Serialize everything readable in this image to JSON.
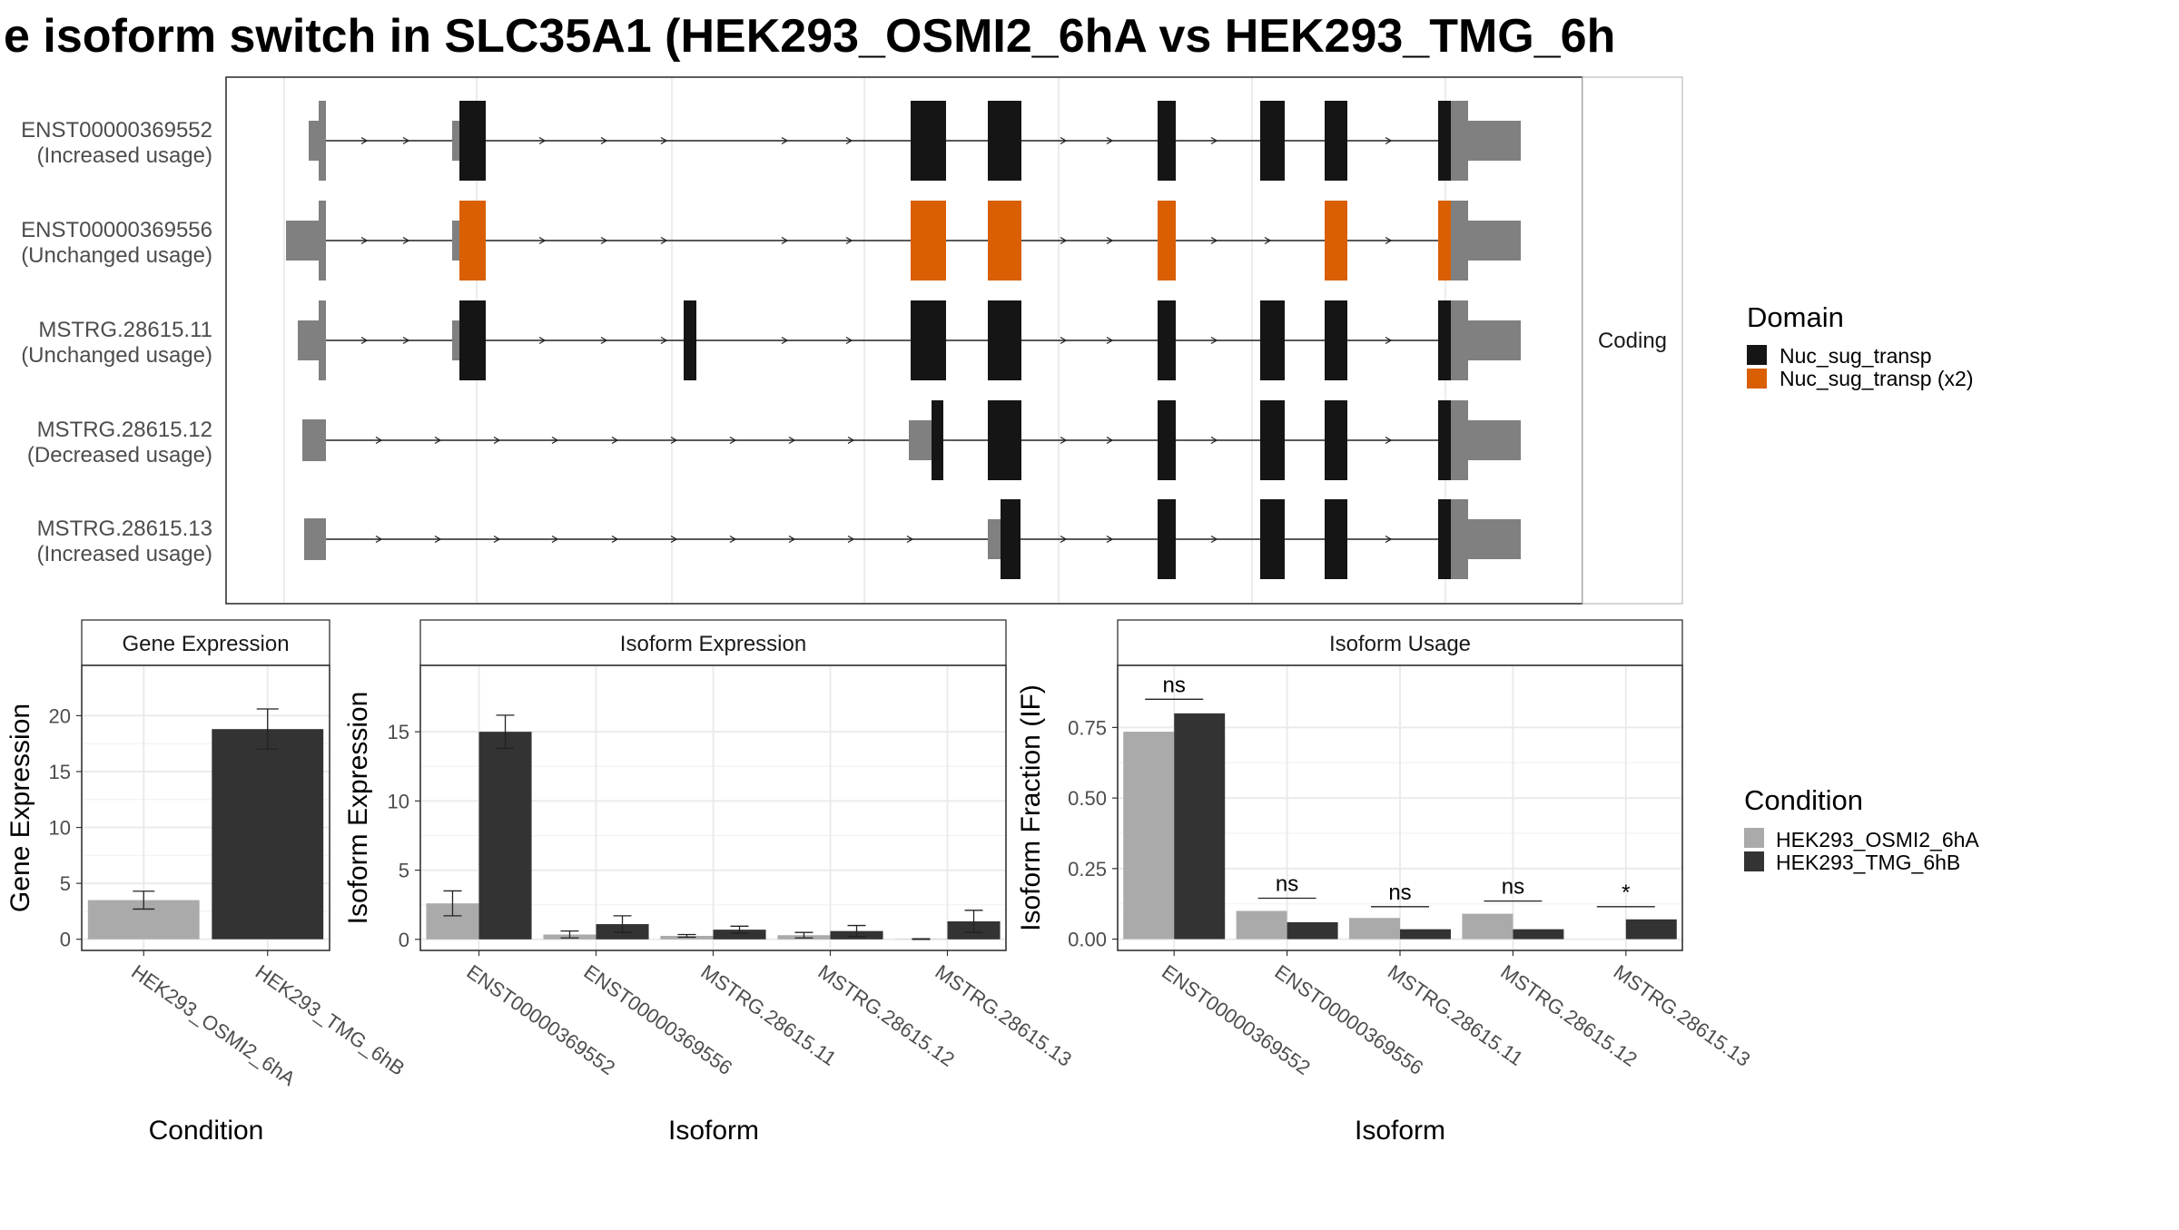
{
  "title": "e isoform switch in SLC35A1 (HEK293_OSMI2_6hA vs HEK293_TMG_6h",
  "colors": {
    "domain_primary": "#151515",
    "domain_x2": "#d95f02",
    "utr": "#808080",
    "condition_a": "#aaaaaa",
    "condition_b": "#333333"
  },
  "structure": {
    "strip_label": "Coding",
    "legend_title": "Domain",
    "legend_items": [
      "Nuc_sug_transp",
      "Nuc_sug_transp (x2)"
    ],
    "isoforms": [
      {
        "id": "ENST00000369552",
        "status": "(Increased usage)"
      },
      {
        "id": "ENST00000369556",
        "status": "(Unchanged usage)"
      },
      {
        "id": "MSTRG.28615.11",
        "status": "(Unchanged usage)"
      },
      {
        "id": "MSTRG.28615.12",
        "status": "(Decreased usage)"
      },
      {
        "id": "MSTRG.28615.13",
        "status": "(Increased usage)"
      }
    ]
  },
  "chart_data": [
    {
      "type": "bar",
      "title": "Gene Expression",
      "xlabel": "Condition",
      "ylabel": "Gene Expression",
      "categories": [
        "HEK293_OSMI2_6hA",
        "HEK293_TMG_6hB"
      ],
      "values": [
        3.5,
        18.8
      ],
      "error_low": [
        2.7,
        17.0
      ],
      "error_high": [
        4.3,
        20.6
      ],
      "yticks": [
        0,
        5,
        10,
        15,
        20
      ],
      "ylim": [
        -1,
        24.5
      ]
    },
    {
      "type": "bar",
      "title": "Isoform Expression",
      "xlabel": "Isoform",
      "ylabel": "Isoform Expression",
      "categories": [
        "ENST00000369552",
        "ENST00000369556",
        "MSTRG.28615.11",
        "MSTRG.28615.12",
        "MSTRG.28615.13"
      ],
      "series": [
        {
          "name": "HEK293_OSMI2_6hA",
          "values": [
            2.6,
            0.35,
            0.25,
            0.3,
            0.02
          ],
          "err_low": [
            1.7,
            0.1,
            0.15,
            0.1,
            0.0
          ],
          "err_high": [
            3.5,
            0.6,
            0.35,
            0.5,
            0.04
          ]
        },
        {
          "name": "HEK293_TMG_6hB",
          "values": [
            15.0,
            1.1,
            0.7,
            0.6,
            1.3
          ],
          "err_low": [
            13.8,
            0.5,
            0.45,
            0.2,
            0.5
          ],
          "err_high": [
            16.2,
            1.7,
            0.95,
            1.0,
            2.1
          ]
        }
      ],
      "yticks": [
        0,
        5,
        10,
        15
      ],
      "ylim": [
        -0.8,
        19.8
      ]
    },
    {
      "type": "bar",
      "title": "Isoform Usage",
      "xlabel": "Isoform",
      "ylabel": "Isoform Fraction (IF)",
      "categories": [
        "ENST00000369552",
        "ENST00000369556",
        "MSTRG.28615.11",
        "MSTRG.28615.12",
        "MSTRG.28615.13"
      ],
      "series": [
        {
          "name": "HEK293_OSMI2_6hA",
          "values": [
            0.735,
            0.1,
            0.075,
            0.09,
            0.0
          ]
        },
        {
          "name": "HEK293_TMG_6hB",
          "values": [
            0.8,
            0.06,
            0.035,
            0.035,
            0.07
          ]
        }
      ],
      "significance": [
        "ns",
        "ns",
        "ns",
        "ns",
        "*"
      ],
      "sig_y": [
        0.85,
        0.145,
        0.115,
        0.135,
        0.115
      ],
      "yticks": [
        "0.00",
        "0.25",
        "0.50",
        "0.75"
      ],
      "ytick_values": [
        0,
        0.25,
        0.5,
        0.75
      ],
      "ylim": [
        -0.04,
        0.97
      ],
      "legend_title": "Condition",
      "legend_items": [
        "HEK293_OSMI2_6hA",
        "HEK293_TMG_6hB"
      ]
    }
  ]
}
